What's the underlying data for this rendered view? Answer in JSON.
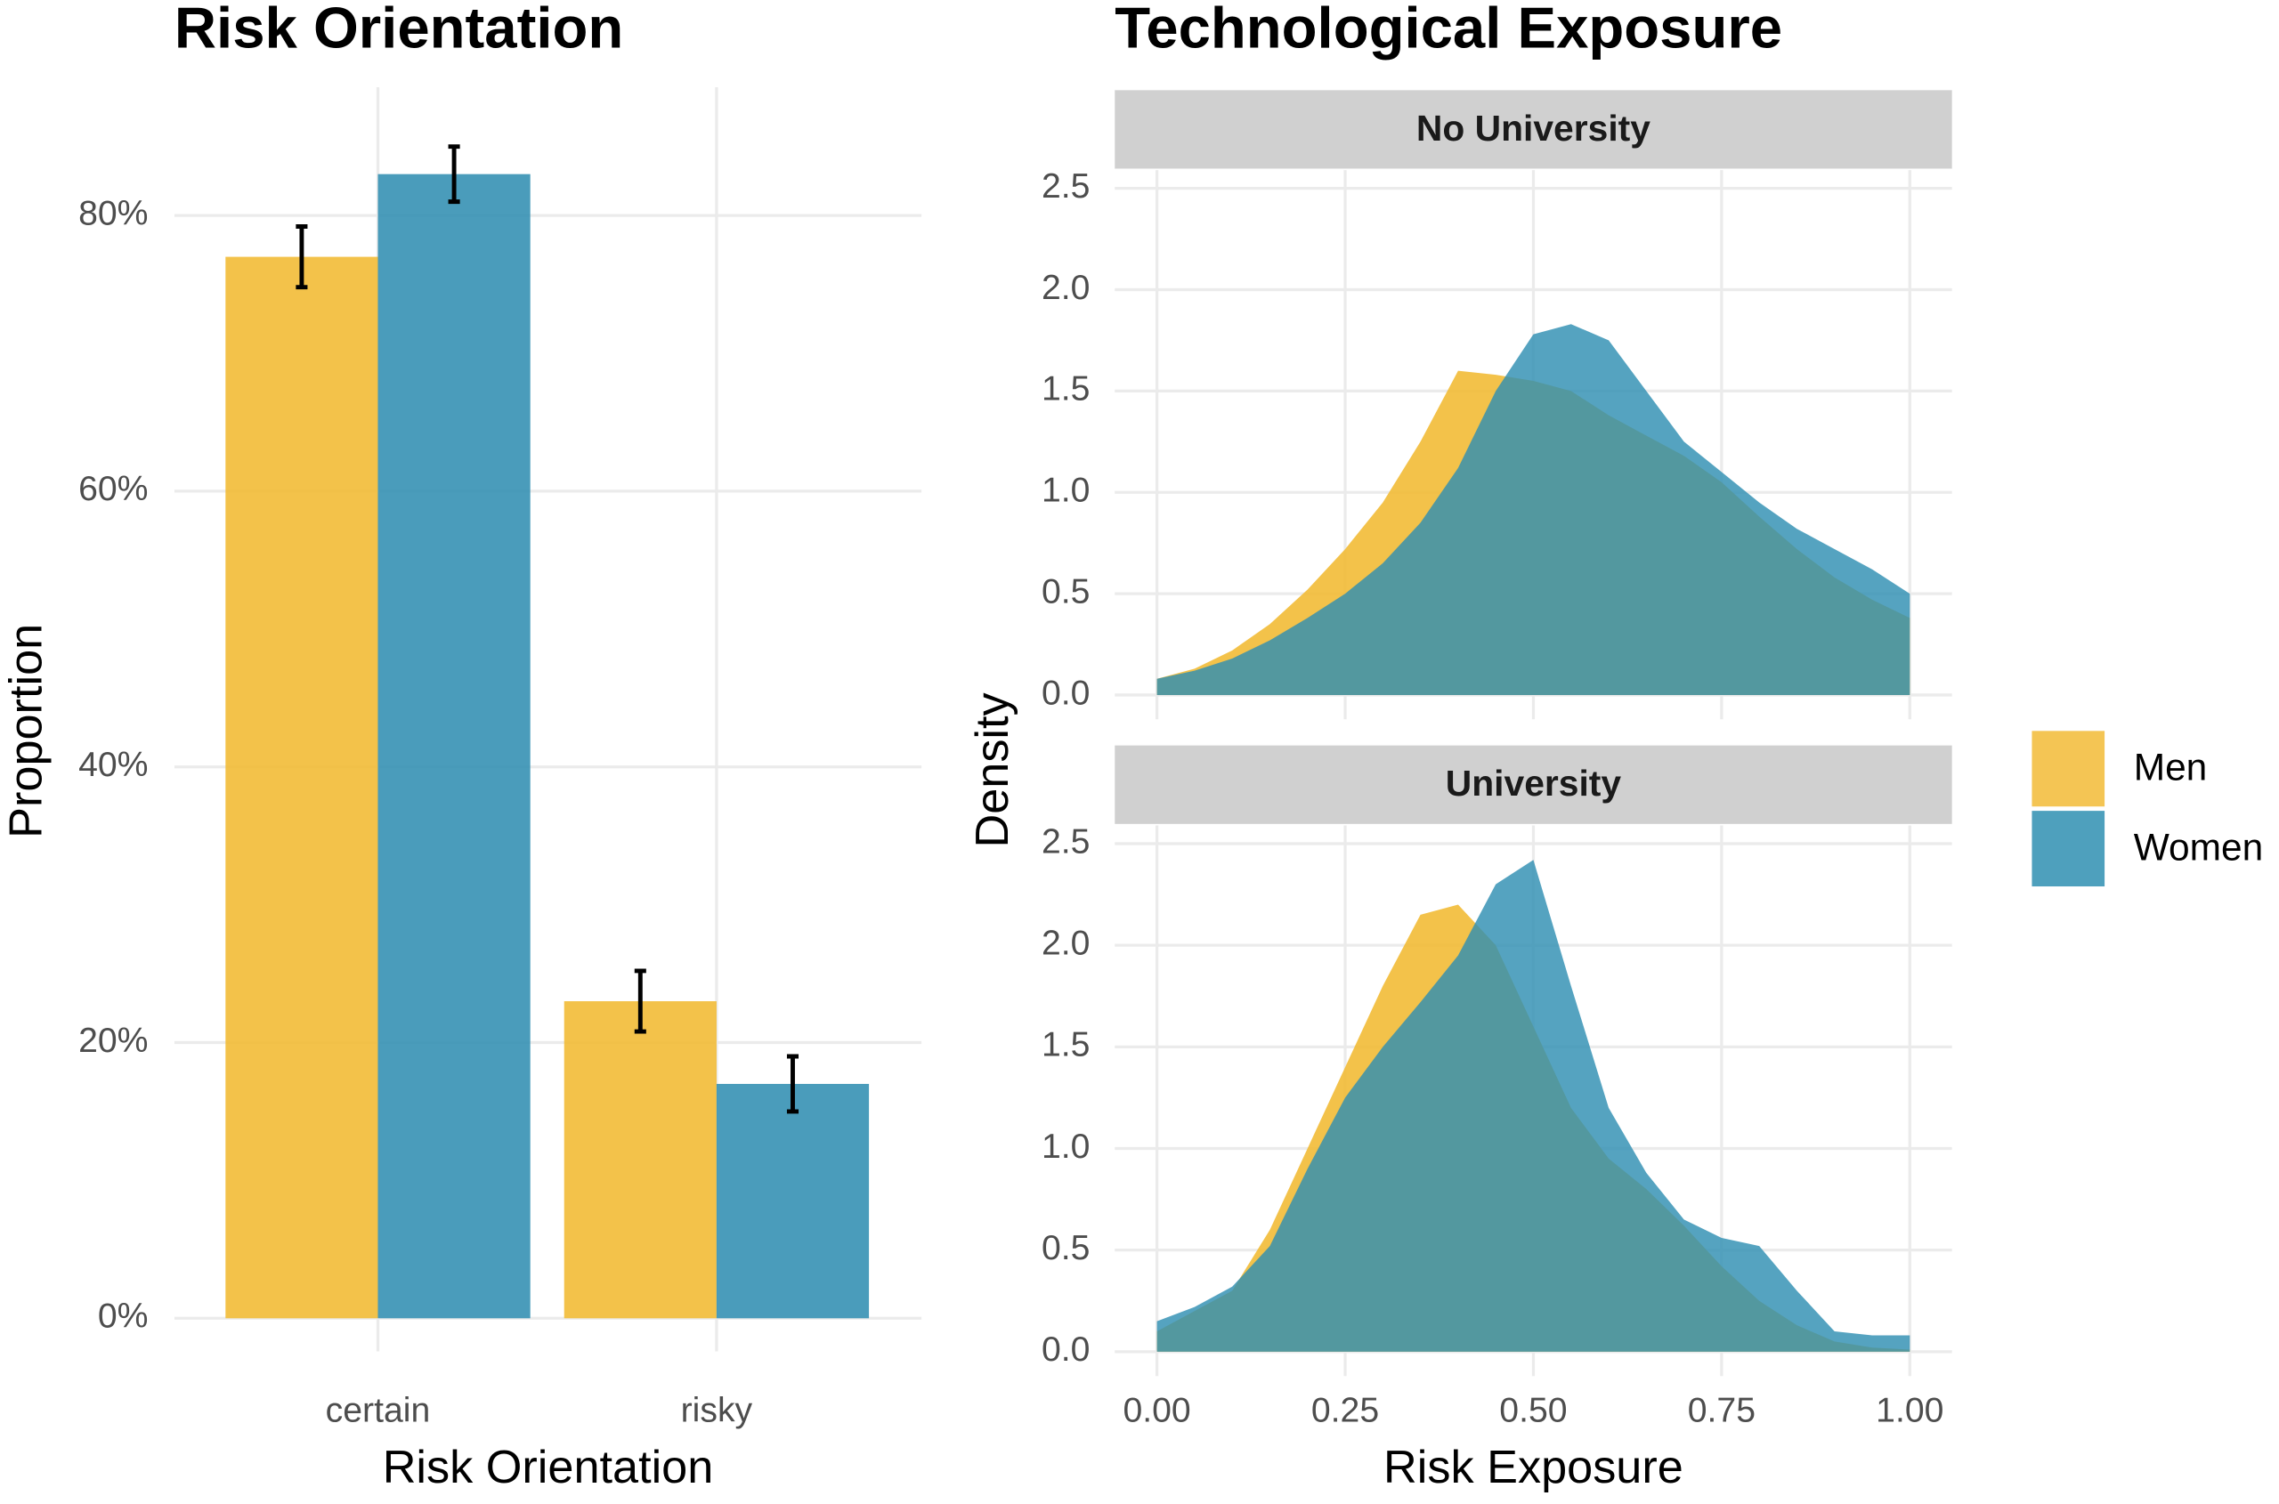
{
  "chart_data": [
    {
      "type": "bar",
      "title": "Risk Orientation",
      "x_label": "Risk Orientation",
      "y_label": "Proportion",
      "categories": [
        "certain",
        "risky"
      ],
      "series": [
        {
          "color": "#f2bb36",
          "values": [
            77,
            23
          ],
          "errors": [
            2.2,
            2.2
          ]
        },
        {
          "color": "#3691b4",
          "values": [
            83,
            17
          ],
          "errors": [
            2,
            2
          ]
        }
      ],
      "ylim": [
        -2.4,
        89.3
      ],
      "yticks": [
        {
          "value": 0,
          "label": "0%"
        },
        {
          "value": 20,
          "label": "20%"
        },
        {
          "value": 40,
          "label": "40%"
        },
        {
          "value": 60,
          "label": "60%"
        },
        {
          "value": 80,
          "label": "80%"
        }
      ],
      "grid": true
    },
    {
      "type": "density",
      "title": "Technological Exposure",
      "x_label": "Risk Exposure",
      "y_label": "Density",
      "series": [
        {
          "name": "Men",
          "color": "#f2bb36"
        },
        {
          "name": "Women",
          "color": "#2f8fb2"
        }
      ],
      "xlim": [
        -0.056,
        1.056
      ],
      "xticks": [
        {
          "value": 0,
          "label": "0.00"
        },
        {
          "value": 0.25,
          "label": "0.25"
        },
        {
          "value": 0.5,
          "label": "0.50"
        },
        {
          "value": 0.75,
          "label": "0.75"
        },
        {
          "value": 1,
          "label": "1.00"
        }
      ],
      "ylim": [
        -0.12,
        2.59
      ],
      "yticks": [
        {
          "value": 0,
          "label": "0.0"
        },
        {
          "value": 0.5,
          "label": "0.5"
        },
        {
          "value": 1,
          "label": "1.0"
        },
        {
          "value": 1.5,
          "label": "1.5"
        },
        {
          "value": 2,
          "label": "2.0"
        },
        {
          "value": 2.5,
          "label": "2.5"
        }
      ],
      "grid": true,
      "x": [
        0,
        0.05,
        0.1,
        0.15,
        0.2,
        0.25,
        0.3,
        0.35,
        0.4,
        0.45,
        0.5,
        0.55,
        0.6,
        0.65,
        0.7,
        0.75,
        0.8,
        0.85,
        0.9,
        0.95,
        1
      ],
      "facets": [
        {
          "title": "No University",
          "series": [
            {
              "values": [
                0.08,
                0.13,
                0.22,
                0.35,
                0.52,
                0.72,
                0.95,
                1.25,
                1.6,
                1.58,
                1.55,
                1.5,
                1.38,
                1.28,
                1.18,
                1.05,
                0.88,
                0.72,
                0.58,
                0.47,
                0.38
              ]
            },
            {
              "values": [
                0.08,
                0.12,
                0.18,
                0.27,
                0.38,
                0.5,
                0.65,
                0.85,
                1.12,
                1.5,
                1.78,
                1.83,
                1.75,
                1.5,
                1.25,
                1.1,
                0.95,
                0.82,
                0.72,
                0.62,
                0.5
              ]
            }
          ]
        },
        {
          "title": "University",
          "series": [
            {
              "values": [
                0.1,
                0.2,
                0.3,
                0.6,
                1.0,
                1.4,
                1.8,
                2.15,
                2.2,
                2.0,
                1.6,
                1.2,
                0.95,
                0.8,
                0.62,
                0.42,
                0.25,
                0.13,
                0.05,
                0.02,
                0.01
              ]
            },
            {
              "values": [
                0.15,
                0.22,
                0.32,
                0.52,
                0.9,
                1.25,
                1.5,
                1.72,
                1.95,
                2.3,
                2.42,
                1.8,
                1.2,
                0.88,
                0.65,
                0.56,
                0.52,
                0.3,
                0.1,
                0.08,
                0.08
              ]
            }
          ]
        }
      ]
    }
  ]
}
